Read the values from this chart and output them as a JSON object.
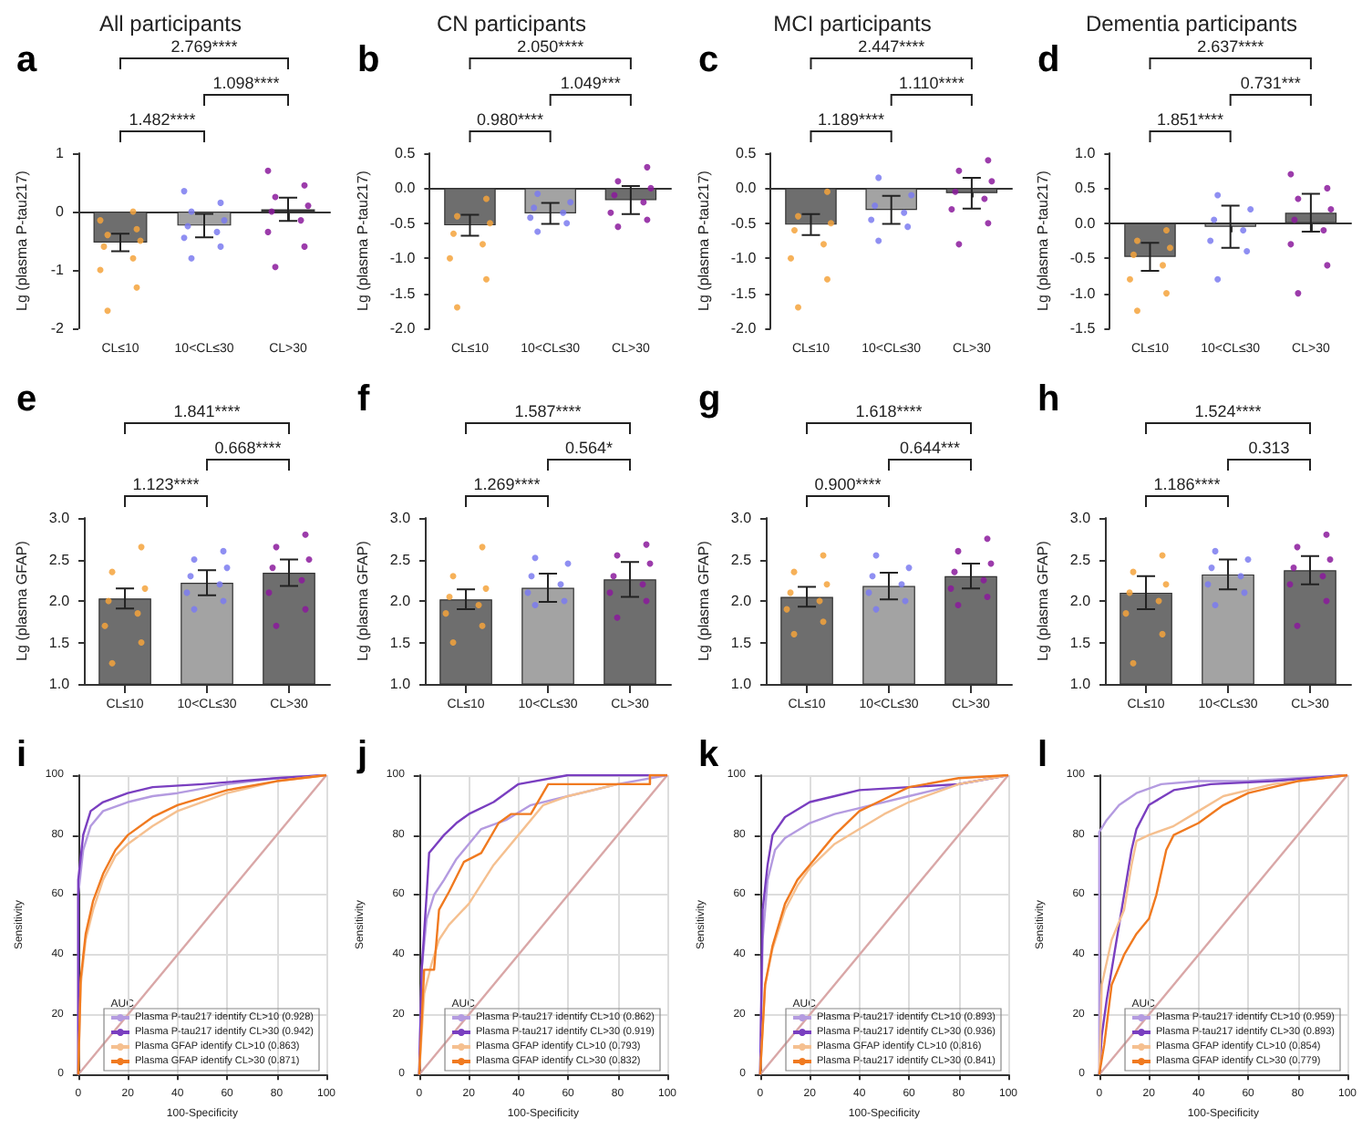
{
  "chart_data": [
    {
      "type": "bar",
      "title": "All participants",
      "subtitle": "a",
      "ylabel": "Lg (plasma P-tau217)",
      "categories": [
        "CL≤10",
        "10<CL≤30",
        "CL>30"
      ],
      "ylim": [
        -2,
        1
      ],
      "yticks": [
        -2,
        -1,
        0,
        1
      ],
      "annotations": [
        "2.769****",
        "1.098****",
        "1.482****"
      ],
      "series": [
        {
          "type": "bar",
          "values": [
            -0.53,
            -0.24,
            0.04
          ],
          "errors": [
            0.15,
            0.2,
            0.2
          ],
          "colors": [
            "#6e6e6e",
            "#a3a3a3",
            "#6e6e6e"
          ]
        },
        {
          "type": "scatter",
          "color": "#f5a33c",
          "x": [
            "CL≤10",
            "CL≤10",
            "CL≤10",
            "CL≤10",
            "CL≤10",
            "CL≤10",
            "CL≤10",
            "CL≤10",
            "CL≤10",
            "CL≤10"
          ],
          "values": [
            -1.7,
            -1.3,
            -1.0,
            -0.8,
            -0.6,
            -0.5,
            -0.4,
            -0.3,
            -0.15,
            0
          ]
        },
        {
          "type": "scatter",
          "color": "#7b7bf0",
          "x": [
            "10<CL≤30",
            "10<CL≤30",
            "10<CL≤30",
            "10<CL≤30",
            "10<CL≤30",
            "10<CL≤30",
            "10<CL≤30",
            "10<CL≤30",
            "10<CL≤30"
          ],
          "values": [
            -0.8,
            -0.6,
            -0.45,
            -0.35,
            -0.25,
            -0.15,
            0,
            0.15,
            0.35
          ]
        },
        {
          "type": "scatter",
          "color": "#8b1a9c",
          "x": [
            "CL>30",
            "CL>30",
            "CL>30",
            "CL>30",
            "CL>30",
            "CL>30",
            "CL>30",
            "CL>30",
            "CL>30"
          ],
          "values": [
            -0.95,
            -0.6,
            -0.35,
            -0.15,
            0,
            0.1,
            0.25,
            0.45,
            0.7
          ]
        }
      ]
    },
    {
      "type": "bar",
      "title": "CN participants",
      "subtitle": "b",
      "ylabel": "Lg (plasma P-tau217)",
      "categories": [
        "CL≤10",
        "10<CL≤30",
        "CL>30"
      ],
      "ylim": [
        -2,
        0.5
      ],
      "yticks": [
        {
          "value": -2,
          "label": "-2.0"
        },
        -1.5,
        {
          "value": -1,
          "label": "-1.0"
        },
        -0.5,
        {
          "value": 0,
          "label": "0.0"
        },
        0.5
      ],
      "annotations": [
        "2.050****",
        "1.049***",
        "0.980****"
      ],
      "series": [
        {
          "type": "bar",
          "values": [
            -0.53,
            -0.36,
            -0.17
          ],
          "errors": [
            0.15,
            0.15,
            0.2
          ],
          "colors": [
            "#6e6e6e",
            "#a3a3a3",
            "#6e6e6e"
          ]
        },
        {
          "type": "scatter",
          "color": "#f5a33c",
          "x": [
            "CL≤10",
            "CL≤10",
            "CL≤10",
            "CL≤10",
            "CL≤10",
            "CL≤10",
            "CL≤10",
            "CL≤10"
          ],
          "values": [
            -1.7,
            -1.3,
            -1.0,
            -0.8,
            -0.65,
            -0.5,
            -0.4,
            -0.15
          ]
        },
        {
          "type": "scatter",
          "color": "#7b7bf0",
          "x": [
            "10<CL≤30",
            "10<CL≤30",
            "10<CL≤30",
            "10<CL≤30",
            "10<CL≤30",
            "10<CL≤30",
            "10<CL≤30"
          ],
          "values": [
            -0.62,
            -0.5,
            -0.42,
            -0.35,
            -0.28,
            -0.2,
            -0.08
          ]
        },
        {
          "type": "scatter",
          "color": "#8b1a9c",
          "x": [
            "CL>30",
            "CL>30",
            "CL>30",
            "CL>30",
            "CL>30",
            "CL>30",
            "CL>30",
            "CL>30"
          ],
          "values": [
            -0.55,
            -0.45,
            -0.35,
            -0.2,
            -0.1,
            0,
            0.1,
            0.3
          ]
        }
      ]
    },
    {
      "type": "bar",
      "title": "MCI participants",
      "subtitle": "c",
      "ylabel": "Lg (plasma P-tau217)",
      "categories": [
        "CL≤10",
        "10<CL≤30",
        "CL>30"
      ],
      "ylim": [
        -2,
        0.5
      ],
      "yticks": [
        {
          "value": -2,
          "label": "-2.0"
        },
        -1.5,
        {
          "value": -1,
          "label": "-1.0"
        },
        -0.5,
        {
          "value": 0,
          "label": "0.0"
        },
        0.5
      ],
      "annotations": [
        "2.447****",
        "1.110****",
        "1.189****"
      ],
      "series": [
        {
          "type": "bar",
          "values": [
            -0.52,
            -0.31,
            -0.07
          ],
          "errors": [
            0.15,
            0.2,
            0.22
          ],
          "colors": [
            "#6e6e6e",
            "#a3a3a3",
            "#6e6e6e"
          ]
        },
        {
          "type": "scatter",
          "color": "#f5a33c",
          "x": [
            "CL≤10",
            "CL≤10",
            "CL≤10",
            "CL≤10",
            "CL≤10",
            "CL≤10",
            "CL≤10",
            "CL≤10"
          ],
          "values": [
            -1.7,
            -1.3,
            -1.0,
            -0.8,
            -0.6,
            -0.5,
            -0.4,
            -0.05
          ]
        },
        {
          "type": "scatter",
          "color": "#7b7bf0",
          "x": [
            "10<CL≤30",
            "10<CL≤30",
            "10<CL≤30",
            "10<CL≤30",
            "10<CL≤30",
            "10<CL≤30",
            "10<CL≤30"
          ],
          "values": [
            -0.75,
            -0.55,
            -0.45,
            -0.35,
            -0.25,
            -0.1,
            0.15
          ]
        },
        {
          "type": "scatter",
          "color": "#8b1a9c",
          "x": [
            "CL>30",
            "CL>30",
            "CL>30",
            "CL>30",
            "CL>30",
            "CL>30",
            "CL>30",
            "CL>30"
          ],
          "values": [
            -0.8,
            -0.5,
            -0.3,
            -0.15,
            -0.05,
            0.1,
            0.25,
            0.4
          ]
        }
      ]
    },
    {
      "type": "bar",
      "title": "Dementia participants",
      "subtitle": "d",
      "ylabel": "Lg (plasma P-tau217)",
      "categories": [
        "CL≤10",
        "10<CL≤30",
        "CL>30"
      ],
      "ylim": [
        -1.5,
        1
      ],
      "yticks": [
        -1.5,
        {
          "value": -1,
          "label": "-1.0"
        },
        -0.5,
        {
          "value": 0,
          "label": "0.0"
        },
        0.5,
        {
          "value": 1,
          "label": "1.0"
        }
      ],
      "annotations": [
        "2.637****",
        "0.731***",
        "1.851****"
      ],
      "series": [
        {
          "type": "bar",
          "values": [
            -0.48,
            -0.05,
            0.15
          ],
          "errors": [
            0.2,
            0.3,
            0.27
          ],
          "colors": [
            "#6e6e6e",
            "#a3a3a3",
            "#6e6e6e"
          ]
        },
        {
          "type": "scatter",
          "color": "#f5a33c",
          "x": [
            "CL≤10",
            "CL≤10",
            "CL≤10",
            "CL≤10",
            "CL≤10",
            "CL≤10",
            "CL≤10",
            "CL≤10"
          ],
          "values": [
            -1.25,
            -1.0,
            -0.8,
            -0.6,
            -0.45,
            -0.35,
            -0.25,
            -0.1
          ]
        },
        {
          "type": "scatter",
          "color": "#7b7bf0",
          "x": [
            "10<CL≤30",
            "10<CL≤30",
            "10<CL≤30",
            "10<CL≤30",
            "10<CL≤30",
            "10<CL≤30",
            "10<CL≤30"
          ],
          "values": [
            -0.8,
            -0.4,
            -0.25,
            -0.1,
            0.05,
            0.2,
            0.4
          ]
        },
        {
          "type": "scatter",
          "color": "#8b1a9c",
          "x": [
            "CL>30",
            "CL>30",
            "CL>30",
            "CL>30",
            "CL>30",
            "CL>30",
            "CL>30",
            "CL>30",
            "CL>30"
          ],
          "values": [
            -1.0,
            -0.6,
            -0.3,
            -0.1,
            0.05,
            0.2,
            0.35,
            0.5,
            0.7
          ]
        }
      ]
    },
    {
      "type": "bar",
      "subtitle": "e",
      "ylabel": "Lg (plasma GFAP)",
      "categories": [
        "CL≤10",
        "10<CL≤30",
        "CL>30"
      ],
      "ylim": [
        1,
        3
      ],
      "yticks": [
        {
          "value": 1,
          "label": "1.0"
        },
        1.5,
        {
          "value": 2,
          "label": "2.0"
        },
        2.5,
        {
          "value": 3,
          "label": "3.0"
        }
      ],
      "annotations": [
        "1.841****",
        "0.668****",
        "1.123****"
      ],
      "series": [
        {
          "type": "bar",
          "values": [
            2.03,
            2.22,
            2.34
          ],
          "errors": [
            0.12,
            0.15,
            0.16
          ],
          "colors": [
            "#6e6e6e",
            "#a3a3a3",
            "#6e6e6e"
          ]
        },
        {
          "type": "scatter",
          "color": "#f5a33c",
          "x": [
            "CL≤10",
            "CL≤10",
            "CL≤10",
            "CL≤10",
            "CL≤10",
            "CL≤10",
            "CL≤10",
            "CL≤10"
          ],
          "values": [
            1.25,
            1.5,
            1.7,
            1.85,
            2.0,
            2.15,
            2.35,
            2.65
          ]
        },
        {
          "type": "scatter",
          "color": "#7b7bf0",
          "x": [
            "10<CL≤30",
            "10<CL≤30",
            "10<CL≤30",
            "10<CL≤30",
            "10<CL≤30",
            "10<CL≤30",
            "10<CL≤30",
            "10<CL≤30"
          ],
          "values": [
            1.9,
            2.0,
            2.1,
            2.2,
            2.3,
            2.4,
            2.5,
            2.6
          ]
        },
        {
          "type": "scatter",
          "color": "#8b1a9c",
          "x": [
            "CL>30",
            "CL>30",
            "CL>30",
            "CL>30",
            "CL>30",
            "CL>30",
            "CL>30",
            "CL>30"
          ],
          "values": [
            1.7,
            1.9,
            2.1,
            2.25,
            2.4,
            2.5,
            2.65,
            2.8
          ]
        }
      ]
    },
    {
      "type": "bar",
      "subtitle": "f",
      "ylabel": "Lg (plasma GFAP)",
      "categories": [
        "CL≤10",
        "10<CL≤30",
        "CL>30"
      ],
      "ylim": [
        1,
        3
      ],
      "yticks": [
        {
          "value": 1,
          "label": "1.0"
        },
        1.5,
        {
          "value": 2,
          "label": "2.0"
        },
        2.5,
        {
          "value": 3,
          "label": "3.0"
        }
      ],
      "annotations": [
        "1.587****",
        "0.564*",
        "1.269****"
      ],
      "series": [
        {
          "type": "bar",
          "values": [
            2.02,
            2.16,
            2.26
          ],
          "errors": [
            0.12,
            0.17,
            0.21
          ],
          "colors": [
            "#6e6e6e",
            "#a3a3a3",
            "#6e6e6e"
          ]
        },
        {
          "type": "scatter",
          "color": "#f5a33c",
          "x": [
            "CL≤10",
            "CL≤10",
            "CL≤10",
            "CL≤10",
            "CL≤10",
            "CL≤10",
            "CL≤10",
            "CL≤10"
          ],
          "values": [
            1.5,
            1.7,
            1.85,
            1.95,
            2.05,
            2.15,
            2.3,
            2.65
          ]
        },
        {
          "type": "scatter",
          "color": "#7b7bf0",
          "x": [
            "10<CL≤30",
            "10<CL≤30",
            "10<CL≤30",
            "10<CL≤30",
            "10<CL≤30",
            "10<CL≤30",
            "10<CL≤30"
          ],
          "values": [
            1.95,
            2.0,
            2.1,
            2.2,
            2.3,
            2.45,
            2.52
          ]
        },
        {
          "type": "scatter",
          "color": "#8b1a9c",
          "x": [
            "CL>30",
            "CL>30",
            "CL>30",
            "CL>30",
            "CL>30",
            "CL>30",
            "CL>30",
            "CL>30"
          ],
          "values": [
            1.8,
            2.0,
            2.1,
            2.2,
            2.3,
            2.45,
            2.55,
            2.68
          ]
        }
      ]
    },
    {
      "type": "bar",
      "subtitle": "g",
      "ylabel": "Lg (plasma GFAP)",
      "categories": [
        "CL≤10",
        "10<CL≤30",
        "CL>30"
      ],
      "ylim": [
        1,
        3
      ],
      "yticks": [
        {
          "value": 1,
          "label": "1.0"
        },
        1.5,
        {
          "value": 2,
          "label": "2.0"
        },
        2.5,
        {
          "value": 3,
          "label": "3.0"
        }
      ],
      "annotations": [
        "1.618****",
        "0.644***",
        "0.900****"
      ],
      "series": [
        {
          "type": "bar",
          "values": [
            2.05,
            2.18,
            2.3
          ],
          "errors": [
            0.12,
            0.16,
            0.15
          ],
          "colors": [
            "#6e6e6e",
            "#a3a3a3",
            "#6e6e6e"
          ]
        },
        {
          "type": "scatter",
          "color": "#f5a33c",
          "x": [
            "CL≤10",
            "CL≤10",
            "CL≤10",
            "CL≤10",
            "CL≤10",
            "CL≤10",
            "CL≤10",
            "CL≤10"
          ],
          "values": [
            1.6,
            1.75,
            1.9,
            2.0,
            2.1,
            2.2,
            2.35,
            2.55
          ]
        },
        {
          "type": "scatter",
          "color": "#7b7bf0",
          "x": [
            "10<CL≤30",
            "10<CL≤30",
            "10<CL≤30",
            "10<CL≤30",
            "10<CL≤30",
            "10<CL≤30",
            "10<CL≤30"
          ],
          "values": [
            1.9,
            2.0,
            2.1,
            2.2,
            2.3,
            2.4,
            2.55
          ]
        },
        {
          "type": "scatter",
          "color": "#8b1a9c",
          "x": [
            "CL>30",
            "CL>30",
            "CL>30",
            "CL>30",
            "CL>30",
            "CL>30",
            "CL>30",
            "CL>30"
          ],
          "values": [
            1.95,
            2.05,
            2.15,
            2.25,
            2.35,
            2.45,
            2.6,
            2.75
          ]
        }
      ]
    },
    {
      "type": "bar",
      "subtitle": "h",
      "ylabel": "Lg (plasma GFAP)",
      "categories": [
        "CL≤10",
        "10<CL≤30",
        "CL>30"
      ],
      "ylim": [
        1,
        3
      ],
      "yticks": [
        {
          "value": 1,
          "label": "1.0"
        },
        1.5,
        {
          "value": 2,
          "label": "2.0"
        },
        2.5,
        {
          "value": 3,
          "label": "3.0"
        }
      ],
      "annotations": [
        "1.524****",
        "0.313",
        "1.186****"
      ],
      "series": [
        {
          "type": "bar",
          "values": [
            2.1,
            2.32,
            2.37
          ],
          "errors": [
            0.2,
            0.18,
            0.17
          ],
          "colors": [
            "#6e6e6e",
            "#a3a3a3",
            "#6e6e6e"
          ]
        },
        {
          "type": "scatter",
          "color": "#f5a33c",
          "x": [
            "CL≤10",
            "CL≤10",
            "CL≤10",
            "CL≤10",
            "CL≤10",
            "CL≤10",
            "CL≤10",
            "CL≤10"
          ],
          "values": [
            1.25,
            1.6,
            1.85,
            2.0,
            2.1,
            2.2,
            2.35,
            2.55
          ]
        },
        {
          "type": "scatter",
          "color": "#7b7bf0",
          "x": [
            "10<CL≤30",
            "10<CL≤30",
            "10<CL≤30",
            "10<CL≤30",
            "10<CL≤30",
            "10<CL≤30",
            "10<CL≤30"
          ],
          "values": [
            1.95,
            2.1,
            2.2,
            2.3,
            2.4,
            2.5,
            2.6
          ]
        },
        {
          "type": "scatter",
          "color": "#8b1a9c",
          "x": [
            "CL>30",
            "CL>30",
            "CL>30",
            "CL>30",
            "CL>30",
            "CL>30",
            "CL>30",
            "CL>30"
          ],
          "values": [
            1.7,
            2.0,
            2.2,
            2.3,
            2.4,
            2.5,
            2.65,
            2.8
          ]
        }
      ]
    },
    {
      "type": "line",
      "subtitle": "i",
      "xlabel": "100-Specificity",
      "ylabel": "Sensitivity",
      "xlim": [
        0,
        100
      ],
      "ylim": [
        0,
        100
      ],
      "xticks": [
        0,
        20,
        40,
        60,
        80,
        100
      ],
      "yticks": [
        0,
        20,
        40,
        60,
        80,
        100
      ],
      "grid": true,
      "marker": "none",
      "legend": "bottom right",
      "legend_title": "AUC",
      "series": [
        {
          "name": "Plasma P-tau217 identify CL>10 (0.928)",
          "color": "#b49be0",
          "x": [
            0,
            0,
            2,
            5,
            10,
            20,
            30,
            40,
            60,
            80,
            100
          ],
          "values": [
            0,
            60,
            75,
            83,
            88,
            91,
            93,
            94,
            97,
            99,
            100
          ]
        },
        {
          "name": "Plasma P-tau217 identify CL>30 (0.942)",
          "color": "#7a3fc0",
          "x": [
            0,
            0,
            2,
            5,
            10,
            20,
            30,
            50,
            80,
            100
          ],
          "values": [
            0,
            65,
            80,
            88,
            91,
            94,
            96,
            97,
            99,
            100
          ]
        },
        {
          "name": "Plasma GFAP identify CL>10 (0.863)",
          "color": "#f5c090",
          "x": [
            0,
            1,
            3,
            6,
            10,
            15,
            20,
            30,
            40,
            60,
            80,
            100
          ],
          "values": [
            0,
            30,
            45,
            55,
            65,
            73,
            77,
            83,
            88,
            94,
            98,
            100
          ]
        },
        {
          "name": "Plasma GFAP identify CL>30 (0.871)",
          "color": "#f07a20",
          "x": [
            0,
            1,
            3,
            6,
            10,
            15,
            20,
            30,
            40,
            60,
            80,
            100
          ],
          "values": [
            0,
            32,
            47,
            58,
            67,
            75,
            80,
            86,
            90,
            95,
            98,
            100
          ]
        },
        {
          "color": "#d9a7a7",
          "x": [
            0,
            100
          ],
          "values": [
            0,
            100
          ]
        }
      ]
    },
    {
      "type": "line",
      "subtitle": "j",
      "xlabel": "100-Specificity",
      "ylabel": "Sensitivity",
      "xlim": [
        0,
        100
      ],
      "ylim": [
        0,
        100
      ],
      "xticks": [
        0,
        20,
        40,
        60,
        80,
        100
      ],
      "yticks": [
        0,
        20,
        40,
        60,
        80,
        100
      ],
      "grid": true,
      "marker": "none",
      "legend": "bottom right",
      "legend_title": "AUC",
      "series": [
        {
          "name": "Plasma P-tau217 identify CL>10 (0.862)",
          "color": "#b49be0",
          "x": [
            0,
            1,
            3,
            6,
            10,
            15,
            20,
            25,
            35,
            45,
            60,
            80,
            100
          ],
          "values": [
            0,
            35,
            52,
            60,
            65,
            72,
            77,
            82,
            85,
            90,
            93,
            97,
            100
          ]
        },
        {
          "name": "Plasma P-tau217 identify CL>30 (0.919)",
          "color": "#7a3fc0",
          "x": [
            0,
            1,
            3,
            4,
            7,
            10,
            15,
            20,
            30,
            40,
            60,
            100
          ],
          "values": [
            0,
            35,
            60,
            74,
            77,
            80,
            84,
            87,
            91,
            97,
            100,
            100
          ]
        },
        {
          "name": "Plasma GFAP identify CL>10 (0.793)",
          "color": "#f5c090",
          "x": [
            0,
            2,
            5,
            8,
            12,
            20,
            30,
            40,
            50,
            60,
            80,
            93,
            93,
            100
          ],
          "values": [
            0,
            27,
            37,
            45,
            50,
            57,
            70,
            80,
            90,
            93,
            97,
            97,
            100,
            100
          ]
        },
        {
          "name": "Plasma GFAP identify CL>30 (0.832)",
          "color": "#f07a20",
          "x": [
            0,
            2,
            6,
            8,
            12,
            18,
            25,
            32,
            37,
            45,
            52,
            93,
            93,
            100
          ],
          "values": [
            0,
            35,
            35,
            55,
            61,
            71,
            74,
            84,
            87,
            87,
            97,
            97,
            100,
            100
          ]
        },
        {
          "color": "#d9a7a7",
          "x": [
            0,
            100
          ],
          "values": [
            0,
            100
          ]
        }
      ]
    },
    {
      "type": "line",
      "subtitle": "k",
      "xlabel": "100-Specificity",
      "ylabel": "Sensitivity",
      "xlim": [
        0,
        100
      ],
      "ylim": [
        0,
        100
      ],
      "xticks": [
        0,
        20,
        40,
        60,
        80,
        100
      ],
      "yticks": [
        0,
        20,
        40,
        60,
        80,
        100
      ],
      "grid": true,
      "marker": "none",
      "legend": "bottom right",
      "legend_title": "AUC",
      "series": [
        {
          "name": "Plasma P-tau217 identify CL>10 (0.893)",
          "color": "#b49be0",
          "x": [
            0,
            1,
            3,
            6,
            10,
            20,
            30,
            40,
            60,
            80,
            100
          ],
          "values": [
            0,
            45,
            65,
            75,
            79,
            84,
            87,
            89,
            93,
            97,
            100
          ]
        },
        {
          "name": "Plasma P-tau217 identify CL>30 (0.936)",
          "color": "#7a3fc0",
          "x": [
            0,
            1,
            3,
            5,
            10,
            20,
            30,
            40,
            60,
            80,
            100
          ],
          "values": [
            0,
            55,
            70,
            80,
            86,
            91,
            93,
            95,
            96,
            97,
            100
          ]
        },
        {
          "name": "Plasma GFAP identify CL>10 (0.816)",
          "color": "#f5c090",
          "x": [
            0,
            2,
            5,
            10,
            15,
            20,
            30,
            40,
            50,
            60,
            80,
            100
          ],
          "values": [
            0,
            30,
            42,
            55,
            63,
            69,
            77,
            82,
            87,
            91,
            97,
            100
          ]
        },
        {
          "name": "Plasma P-tau217 identify CL>30 (0.841)",
          "color": "#f07a20",
          "x": [
            0,
            2,
            5,
            10,
            15,
            20,
            30,
            40,
            50,
            60,
            80,
            100
          ],
          "values": [
            0,
            30,
            43,
            57,
            65,
            70,
            80,
            88,
            92,
            96,
            99,
            100
          ]
        },
        {
          "color": "#d9a7a7",
          "x": [
            0,
            100
          ],
          "values": [
            0,
            100
          ]
        }
      ]
    },
    {
      "type": "line",
      "subtitle": "l",
      "xlabel": "100-Specificity",
      "ylabel": "Sensitivity",
      "xlim": [
        0,
        100
      ],
      "ylim": [
        0,
        100
      ],
      "xticks": [
        0,
        20,
        40,
        60,
        80,
        100
      ],
      "yticks": [
        0,
        20,
        40,
        60,
        80,
        100
      ],
      "grid": true,
      "marker": "none",
      "legend": "bottom right",
      "legend_title": "AUC",
      "series": [
        {
          "name": "Plasma P-tau217 identify CL>10 (0.959)",
          "color": "#b49be0",
          "x": [
            0,
            0,
            3,
            8,
            15,
            25,
            40,
            60,
            80,
            100
          ],
          "values": [
            0,
            81,
            85,
            90,
            94,
            97,
            98,
            98,
            99,
            100
          ]
        },
        {
          "name": "Plasma P-tau217 identify CL>30 (0.893)",
          "color": "#7a3fc0",
          "x": [
            0,
            1,
            3,
            6,
            10,
            13,
            15,
            20,
            30,
            45,
            70,
            100
          ],
          "values": [
            0,
            13,
            25,
            40,
            60,
            75,
            82,
            90,
            95,
            97,
            98,
            100
          ]
        },
        {
          "name": "Plasma GFAP identify CL>10 (0.854)",
          "color": "#f5c090",
          "x": [
            0,
            1,
            5,
            10,
            13,
            15,
            20,
            30,
            40,
            50,
            70,
            100
          ],
          "values": [
            0,
            30,
            45,
            55,
            70,
            78,
            80,
            83,
            88,
            93,
            97,
            100
          ]
        },
        {
          "name": "Plasma GFAP identify CL>30 (0.779)",
          "color": "#f07a20",
          "x": [
            0,
            2,
            5,
            10,
            15,
            20,
            23,
            27,
            30,
            40,
            50,
            60,
            80,
            100
          ],
          "values": [
            0,
            10,
            30,
            40,
            47,
            52,
            60,
            75,
            80,
            84,
            90,
            94,
            98,
            100
          ]
        },
        {
          "color": "#d9a7a7",
          "x": [
            0,
            100
          ],
          "values": [
            0,
            100
          ]
        }
      ]
    }
  ]
}
